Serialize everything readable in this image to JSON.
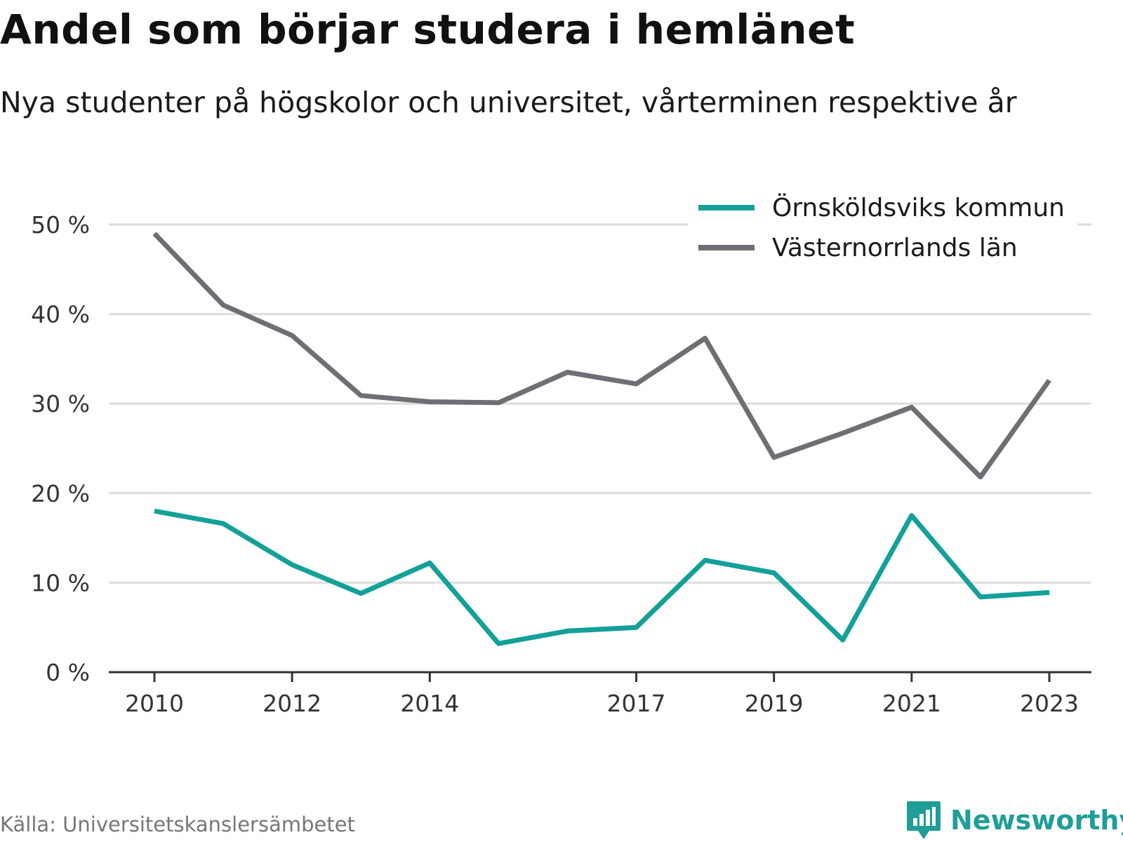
{
  "title": "Andel som börjar studera i hemlänet",
  "subtitle": "Nya studenter på högskolor och universitet, vårterminen respektive år",
  "source": "Källa: Universitetskanslersämbetet",
  "brand": "Newsworthy",
  "colors": {
    "teal": "#14a099",
    "gray": "#6e6e74",
    "grid": "#dddddd",
    "axis": "#333333"
  },
  "chart_data": {
    "type": "line",
    "x": [
      2010,
      2011,
      2012,
      2013,
      2014,
      2015,
      2016,
      2017,
      2018,
      2019,
      2020,
      2021,
      2022,
      2023
    ],
    "x_tick_labels": [
      "2010",
      "2012",
      "2014",
      "2017",
      "2019",
      "2021",
      "2023"
    ],
    "x_ticks": [
      2010,
      2012,
      2014,
      2017,
      2019,
      2021,
      2023
    ],
    "y_ticks": [
      0,
      10,
      20,
      30,
      40,
      50
    ],
    "y_tick_labels": [
      "0 %",
      "10 %",
      "20 %",
      "30 %",
      "40 %",
      "50 %"
    ],
    "ylim": [
      0,
      50
    ],
    "grid": true,
    "legend_position": "top-right",
    "series": [
      {
        "name": "Örnsköldsviks kommun",
        "color": "#14a099",
        "values": [
          18.0,
          16.6,
          12.0,
          8.8,
          12.2,
          3.2,
          4.6,
          5.0,
          12.5,
          11.1,
          3.6,
          17.5,
          8.4,
          8.9
        ]
      },
      {
        "name": "Västernorrlands län",
        "color": "#6e6e74",
        "values": [
          49.0,
          41.0,
          37.6,
          30.9,
          30.2,
          30.1,
          33.5,
          32.2,
          37.3,
          24.0,
          26.7,
          29.6,
          21.8,
          32.6
        ]
      }
    ]
  }
}
